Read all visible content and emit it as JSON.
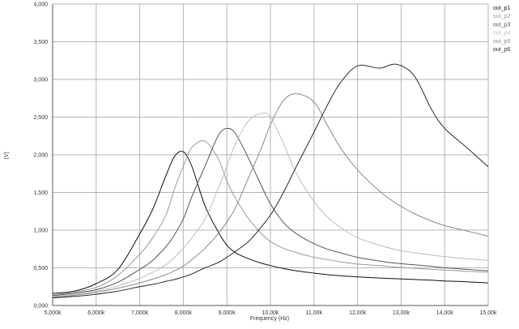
{
  "chart_data": {
    "type": "line",
    "title": "",
    "xlabel": "Frequency (Hz)",
    "ylabel": "(V)",
    "xlim": [
      5000,
      15000
    ],
    "ylim": [
      0,
      4000
    ],
    "grid": true,
    "legend_position": "right",
    "x_ticks": [
      5000,
      6000,
      7000,
      8000,
      9000,
      10000,
      11000,
      12000,
      13000,
      14000,
      15000
    ],
    "x_tick_labels": [
      "5,000k",
      "6,000k",
      "7,000k",
      "8,000k",
      "9,000k",
      "10,00k",
      "11,00k",
      "12,00k",
      "13,00k",
      "14,00k",
      "15,00k"
    ],
    "y_ticks": [
      0,
      500,
      1000,
      1500,
      2000,
      2500,
      3000,
      3500,
      4000
    ],
    "y_tick_labels": [
      "0,000",
      "0,500",
      "1,000",
      "1,500",
      "2,000",
      "2,500",
      "3,000",
      "3,500",
      "4,000"
    ],
    "x": [
      5000,
      5500,
      6000,
      6500,
      7000,
      7300,
      7600,
      7800,
      8000,
      8200,
      8500,
      8800,
      9000,
      9200,
      9500,
      9800,
      10000,
      10300,
      10600,
      11000,
      11300,
      11600,
      12000,
      12500,
      12900,
      13300,
      13700,
      14000,
      14500,
      15000
    ],
    "series": [
      {
        "name": "out_p1",
        "color": "#101010",
        "values": [
          160,
          190,
          290,
          480,
          950,
          1280,
          1720,
          1980,
          2040,
          1840,
          1320,
          980,
          800,
          700,
          620,
          560,
          530,
          490,
          460,
          430,
          410,
          395,
          380,
          365,
          355,
          345,
          335,
          325,
          315,
          300
        ]
      },
      {
        "name": "out_p2",
        "color": "#9a9a9a",
        "values": [
          140,
          180,
          240,
          400,
          680,
          900,
          1200,
          1550,
          1850,
          2100,
          2180,
          1950,
          1650,
          1420,
          1150,
          950,
          850,
          760,
          700,
          640,
          610,
          580,
          550,
          530,
          510,
          495,
          480,
          470,
          455,
          440
        ]
      },
      {
        "name": "out_p3",
        "color": "#555555",
        "values": [
          130,
          165,
          210,
          310,
          480,
          600,
          780,
          940,
          1150,
          1450,
          1850,
          2250,
          2350,
          2280,
          1950,
          1580,
          1350,
          1100,
          950,
          820,
          750,
          700,
          640,
          590,
          560,
          540,
          520,
          500,
          480,
          460
        ]
      },
      {
        "name": "out_p4",
        "color": "#bdbdbd",
        "values": [
          120,
          150,
          190,
          260,
          360,
          440,
          540,
          640,
          760,
          900,
          1150,
          1550,
          1850,
          2150,
          2450,
          2550,
          2500,
          2150,
          1750,
          1380,
          1180,
          1040,
          900,
          800,
          740,
          700,
          670,
          650,
          620,
          600
        ]
      },
      {
        "name": "out_p5",
        "color": "#8a8a8a",
        "values": [
          110,
          135,
          175,
          230,
          300,
          350,
          410,
          460,
          520,
          610,
          760,
          950,
          1110,
          1300,
          1700,
          2100,
          2400,
          2720,
          2810,
          2700,
          2400,
          2100,
          1800,
          1520,
          1350,
          1220,
          1120,
          1060,
          990,
          920
        ]
      },
      {
        "name": "out_p6",
        "color": "#2a2a2a",
        "values": [
          100,
          120,
          150,
          190,
          250,
          280,
          320,
          345,
          380,
          420,
          500,
          570,
          640,
          720,
          850,
          1050,
          1200,
          1500,
          1850,
          2300,
          2650,
          2950,
          3180,
          3150,
          3200,
          3050,
          2600,
          2350,
          2100,
          1840
        ]
      }
    ]
  }
}
